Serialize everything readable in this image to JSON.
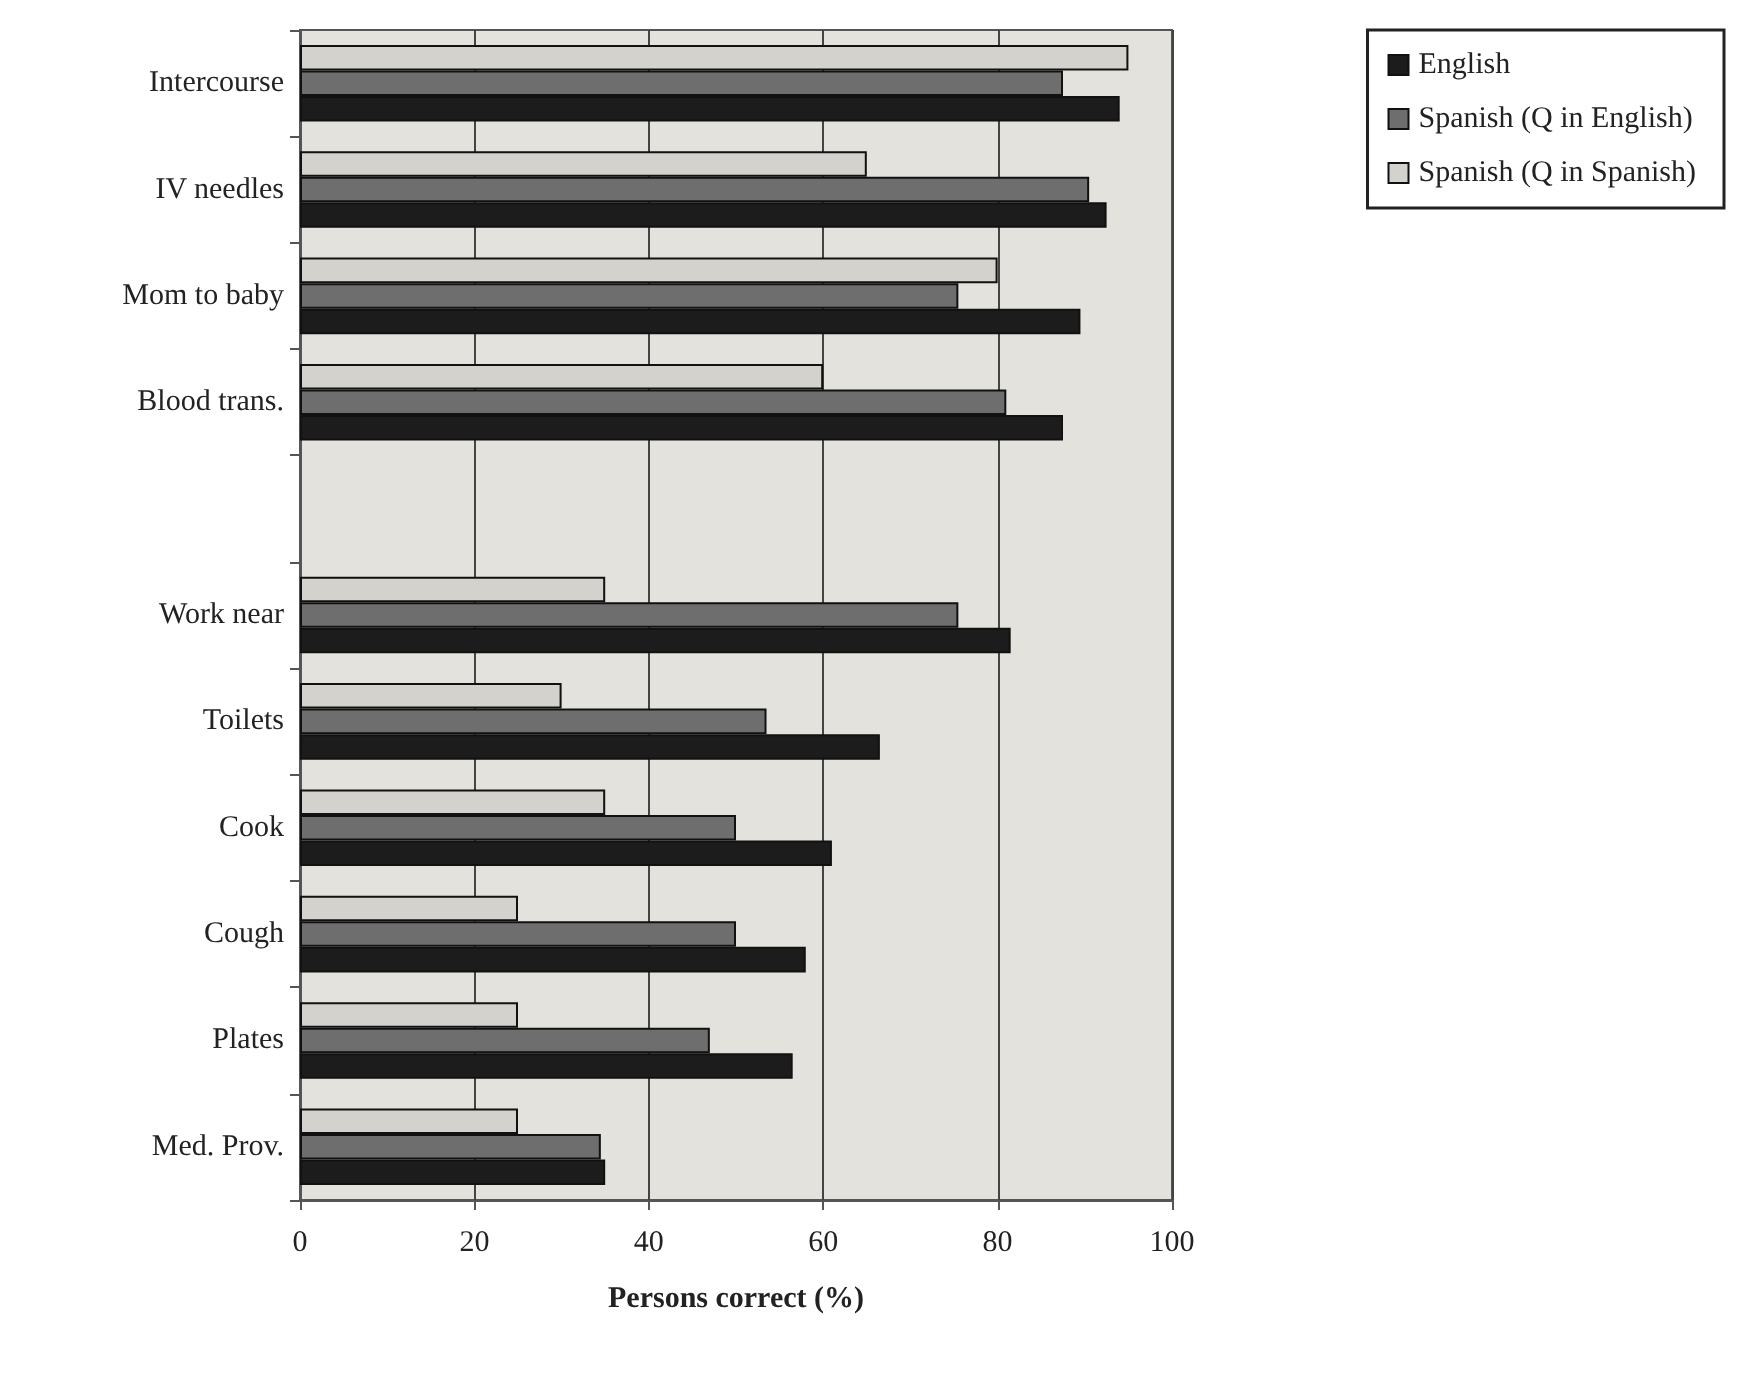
{
  "chart_data": {
    "type": "bar",
    "orientation": "horizontal",
    "xlabel": "Persons correct (%)",
    "categories": [
      "Intercourse",
      "IV needles",
      "Mom to baby",
      "Blood trans.",
      null,
      "Work near",
      "Toilets",
      "Cook",
      "Cough",
      "Plates",
      "Med. Prov."
    ],
    "series": [
      {
        "name": "English",
        "color": "#1c1c1c",
        "values": [
          94,
          92.5,
          89.5,
          87.5,
          null,
          81.5,
          66.5,
          61,
          58,
          56.5,
          35
        ]
      },
      {
        "name": "Spanish (Q in English)",
        "color": "#6e6e6e",
        "values": [
          87.5,
          90.5,
          75.5,
          81,
          null,
          75.5,
          53.5,
          50,
          50,
          47,
          34.5
        ]
      },
      {
        "name": "Spanish (Q in Spanish)",
        "color": "#d4d2cc",
        "values": [
          95,
          65,
          80,
          60,
          null,
          35,
          30,
          35,
          25,
          25,
          25
        ]
      }
    ],
    "xlim": [
      0,
      100
    ],
    "xticks": [
      0,
      20,
      40,
      60,
      80,
      100
    ],
    "grid": "x",
    "legend": "top right"
  }
}
